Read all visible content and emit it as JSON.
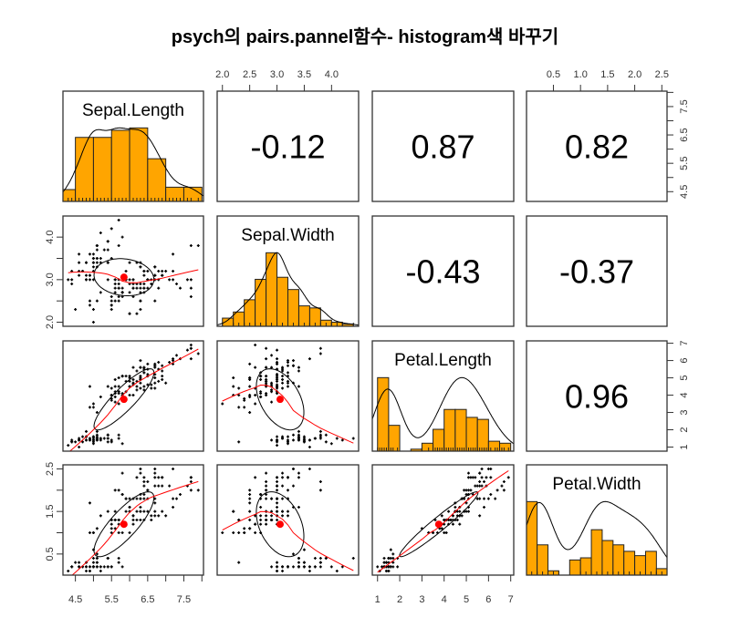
{
  "chart_data": {
    "type": "scatter-matrix",
    "title": "psych의 pairs.pannel함수- histogram색 바꾸기",
    "variables": [
      "Sepal.Length",
      "Sepal.Width",
      "Petal.Length",
      "Petal.Width"
    ],
    "correlations": [
      {
        "row": 0,
        "col": 1,
        "r": "-0.12"
      },
      {
        "row": 0,
        "col": 2,
        "r": "0.87"
      },
      {
        "row": 0,
        "col": 3,
        "r": "0.82"
      },
      {
        "row": 1,
        "col": 2,
        "r": "-0.43"
      },
      {
        "row": 1,
        "col": 3,
        "r": "-0.37"
      },
      {
        "row": 2,
        "col": 3,
        "r": "0.96"
      }
    ],
    "histogram_breaks": [
      [
        4.0,
        4.5,
        5.0,
        5.5,
        6.0,
        6.5,
        7.0,
        7.5,
        8.0
      ],
      [
        2.0,
        2.2,
        2.4,
        2.6,
        2.8,
        3.0,
        3.2,
        3.4,
        3.6,
        3.8,
        4.0,
        4.2,
        4.4
      ],
      [
        1.0,
        1.5,
        2.0,
        2.5,
        3.0,
        3.5,
        4.0,
        4.5,
        5.0,
        5.5,
        6.0,
        6.5,
        7.0
      ],
      [
        0.0,
        0.2,
        0.4,
        0.6,
        0.8,
        1.0,
        1.2,
        1.4,
        1.6,
        1.8,
        2.0,
        2.2,
        2.4,
        2.6
      ]
    ],
    "axes": [
      {
        "side": "top",
        "variable": 1,
        "ticks": [
          2.0,
          2.5,
          3.0,
          3.5,
          4.0
        ],
        "labels": [
          "2.0",
          "2.5",
          "3.0",
          "3.5",
          "4.0"
        ]
      },
      {
        "side": "top",
        "variable": 3,
        "ticks": [
          0.5,
          1.0,
          1.5,
          2.0,
          2.5
        ],
        "labels": [
          "0.5",
          "1.0",
          "1.5",
          "2.0",
          "2.5"
        ]
      },
      {
        "side": "right",
        "variable": 0,
        "ticks": [
          4.5,
          5.0,
          5.5,
          6.0,
          6.5,
          7.0,
          7.5,
          8.0
        ],
        "labels": [
          "4.5",
          "",
          "5.5",
          "",
          "6.5",
          "",
          "7.5",
          ""
        ]
      },
      {
        "side": "right",
        "variable": 2,
        "ticks": [
          1,
          2,
          3,
          4,
          5,
          6,
          7
        ],
        "labels": [
          "1",
          "2",
          "3",
          "4",
          "5",
          "6",
          "7"
        ]
      },
      {
        "side": "left",
        "variable": 1,
        "ticks": [
          2.0,
          2.5,
          3.0,
          3.5,
          4.0
        ],
        "labels": [
          "2.0",
          "",
          "3.0",
          "",
          "4.0"
        ]
      },
      {
        "side": "left",
        "variable": 3,
        "ticks": [
          0.5,
          1.0,
          1.5,
          2.0,
          2.5
        ],
        "labels": [
          "0.5",
          "",
          "1.5",
          "",
          "2.5"
        ]
      },
      {
        "side": "bottom",
        "variable": 0,
        "ticks": [
          4.5,
          5.0,
          5.5,
          6.0,
          6.5,
          7.0,
          7.5,
          8.0
        ],
        "labels": [
          "4.5",
          "",
          "5.5",
          "",
          "6.5",
          "",
          "7.5",
          ""
        ]
      },
      {
        "side": "bottom",
        "variable": 2,
        "ticks": [
          1,
          2,
          3,
          4,
          5,
          6,
          7
        ],
        "labels": [
          "1",
          "2",
          "3",
          "4",
          "5",
          "6",
          "7"
        ]
      }
    ],
    "colors": {
      "histogram_fill": "#FFA500",
      "smooth_line": "#FF0000",
      "mean_point": "#FF0000",
      "points": "#000000",
      "ellipse": "#000000",
      "density": "#000000"
    },
    "data": [
      [
        5.1,
        3.5,
        1.4,
        0.2
      ],
      [
        4.9,
        3.0,
        1.4,
        0.2
      ],
      [
        4.7,
        3.2,
        1.3,
        0.2
      ],
      [
        4.6,
        3.1,
        1.5,
        0.2
      ],
      [
        5.0,
        3.6,
        1.4,
        0.2
      ],
      [
        5.4,
        3.9,
        1.7,
        0.4
      ],
      [
        4.6,
        3.4,
        1.4,
        0.3
      ],
      [
        5.0,
        3.4,
        1.5,
        0.2
      ],
      [
        4.4,
        2.9,
        1.4,
        0.2
      ],
      [
        4.9,
        3.1,
        1.5,
        0.1
      ],
      [
        5.4,
        3.7,
        1.5,
        0.2
      ],
      [
        4.8,
        3.4,
        1.6,
        0.2
      ],
      [
        4.8,
        3.0,
        1.4,
        0.1
      ],
      [
        4.3,
        3.0,
        1.1,
        0.1
      ],
      [
        5.8,
        4.0,
        1.2,
        0.2
      ],
      [
        5.7,
        4.4,
        1.5,
        0.4
      ],
      [
        5.4,
        3.9,
        1.3,
        0.4
      ],
      [
        5.1,
        3.5,
        1.4,
        0.3
      ],
      [
        5.7,
        3.8,
        1.7,
        0.3
      ],
      [
        5.1,
        3.8,
        1.5,
        0.3
      ],
      [
        5.4,
        3.4,
        1.7,
        0.2
      ],
      [
        5.1,
        3.7,
        1.5,
        0.4
      ],
      [
        4.6,
        3.6,
        1.0,
        0.2
      ],
      [
        5.1,
        3.3,
        1.7,
        0.5
      ],
      [
        4.8,
        3.4,
        1.9,
        0.2
      ],
      [
        5.0,
        3.0,
        1.6,
        0.2
      ],
      [
        5.0,
        3.4,
        1.6,
        0.4
      ],
      [
        5.2,
        3.5,
        1.5,
        0.2
      ],
      [
        5.2,
        3.4,
        1.4,
        0.2
      ],
      [
        4.7,
        3.2,
        1.6,
        0.2
      ],
      [
        4.8,
        3.1,
        1.6,
        0.2
      ],
      [
        5.4,
        3.4,
        1.5,
        0.4
      ],
      [
        5.2,
        4.1,
        1.5,
        0.1
      ],
      [
        5.5,
        4.2,
        1.4,
        0.2
      ],
      [
        4.9,
        3.1,
        1.5,
        0.2
      ],
      [
        5.0,
        3.2,
        1.2,
        0.2
      ],
      [
        5.5,
        3.5,
        1.3,
        0.2
      ],
      [
        4.9,
        3.6,
        1.4,
        0.1
      ],
      [
        4.4,
        3.0,
        1.3,
        0.2
      ],
      [
        5.1,
        3.4,
        1.5,
        0.2
      ],
      [
        5.0,
        3.5,
        1.3,
        0.3
      ],
      [
        4.5,
        2.3,
        1.3,
        0.3
      ],
      [
        4.4,
        3.2,
        1.3,
        0.2
      ],
      [
        5.0,
        3.5,
        1.6,
        0.6
      ],
      [
        5.1,
        3.8,
        1.9,
        0.4
      ],
      [
        4.8,
        3.0,
        1.4,
        0.3
      ],
      [
        5.1,
        3.8,
        1.6,
        0.2
      ],
      [
        4.6,
        3.2,
        1.4,
        0.2
      ],
      [
        5.3,
        3.7,
        1.5,
        0.2
      ],
      [
        5.0,
        3.3,
        1.4,
        0.2
      ],
      [
        7.0,
        3.2,
        4.7,
        1.4
      ],
      [
        6.4,
        3.2,
        4.5,
        1.5
      ],
      [
        6.9,
        3.1,
        4.9,
        1.5
      ],
      [
        5.5,
        2.3,
        4.0,
        1.3
      ],
      [
        6.5,
        2.8,
        4.6,
        1.5
      ],
      [
        5.7,
        2.8,
        4.5,
        1.3
      ],
      [
        6.3,
        3.3,
        4.7,
        1.6
      ],
      [
        4.9,
        2.4,
        3.3,
        1.0
      ],
      [
        6.6,
        2.9,
        4.6,
        1.3
      ],
      [
        5.2,
        2.7,
        3.9,
        1.4
      ],
      [
        5.0,
        2.0,
        3.5,
        1.0
      ],
      [
        5.9,
        3.0,
        4.2,
        1.5
      ],
      [
        6.0,
        2.2,
        4.0,
        1.0
      ],
      [
        6.1,
        2.9,
        4.7,
        1.4
      ],
      [
        5.6,
        2.9,
        3.6,
        1.3
      ],
      [
        6.7,
        3.1,
        4.4,
        1.4
      ],
      [
        5.6,
        3.0,
        4.5,
        1.5
      ],
      [
        5.8,
        2.7,
        4.1,
        1.0
      ],
      [
        6.2,
        2.2,
        4.5,
        1.5
      ],
      [
        5.6,
        2.5,
        3.9,
        1.1
      ],
      [
        5.9,
        3.2,
        4.8,
        1.8
      ],
      [
        6.1,
        2.8,
        4.0,
        1.3
      ],
      [
        6.3,
        2.5,
        4.9,
        1.5
      ],
      [
        6.1,
        2.8,
        4.7,
        1.2
      ],
      [
        6.4,
        2.9,
        4.3,
        1.3
      ],
      [
        6.6,
        3.0,
        4.4,
        1.4
      ],
      [
        6.8,
        2.8,
        4.8,
        1.4
      ],
      [
        6.7,
        3.0,
        5.0,
        1.7
      ],
      [
        6.0,
        2.9,
        4.5,
        1.5
      ],
      [
        5.7,
        2.6,
        3.5,
        1.0
      ],
      [
        5.5,
        2.4,
        3.8,
        1.1
      ],
      [
        5.5,
        2.4,
        3.7,
        1.0
      ],
      [
        5.8,
        2.7,
        3.9,
        1.2
      ],
      [
        6.0,
        2.7,
        5.1,
        1.6
      ],
      [
        5.4,
        3.0,
        4.5,
        1.5
      ],
      [
        6.0,
        3.4,
        4.5,
        1.6
      ],
      [
        6.7,
        3.1,
        4.7,
        1.5
      ],
      [
        6.3,
        2.3,
        4.4,
        1.3
      ],
      [
        5.6,
        3.0,
        4.1,
        1.3
      ],
      [
        5.5,
        2.5,
        4.0,
        1.3
      ],
      [
        5.5,
        2.6,
        4.4,
        1.2
      ],
      [
        6.1,
        3.0,
        4.6,
        1.4
      ],
      [
        5.8,
        2.6,
        4.0,
        1.2
      ],
      [
        5.0,
        2.3,
        3.3,
        1.0
      ],
      [
        5.6,
        2.7,
        4.2,
        1.3
      ],
      [
        5.7,
        3.0,
        4.2,
        1.2
      ],
      [
        5.7,
        2.9,
        4.2,
        1.3
      ],
      [
        6.2,
        2.9,
        4.3,
        1.3
      ],
      [
        5.1,
        2.5,
        3.0,
        1.1
      ],
      [
        5.7,
        2.8,
        4.1,
        1.3
      ],
      [
        6.3,
        3.3,
        6.0,
        2.5
      ],
      [
        5.8,
        2.7,
        5.1,
        1.9
      ],
      [
        7.1,
        3.0,
        5.9,
        2.1
      ],
      [
        6.3,
        2.9,
        5.6,
        1.8
      ],
      [
        6.5,
        3.0,
        5.8,
        2.2
      ],
      [
        7.6,
        3.0,
        6.6,
        2.1
      ],
      [
        4.9,
        2.5,
        4.5,
        1.7
      ],
      [
        7.3,
        2.9,
        6.3,
        1.8
      ],
      [
        6.7,
        2.5,
        5.8,
        1.8
      ],
      [
        7.2,
        3.6,
        6.1,
        2.5
      ],
      [
        6.5,
        3.2,
        5.1,
        2.0
      ],
      [
        6.4,
        2.7,
        5.3,
        1.9
      ],
      [
        6.8,
        3.0,
        5.5,
        2.1
      ],
      [
        5.7,
        2.5,
        5.0,
        2.0
      ],
      [
        5.8,
        2.8,
        5.1,
        2.4
      ],
      [
        6.4,
        3.2,
        5.3,
        2.3
      ],
      [
        6.5,
        3.0,
        5.5,
        1.8
      ],
      [
        7.7,
        3.8,
        6.7,
        2.2
      ],
      [
        7.7,
        2.6,
        6.9,
        2.3
      ],
      [
        6.0,
        2.2,
        5.0,
        1.5
      ],
      [
        6.9,
        3.2,
        5.7,
        2.3
      ],
      [
        5.6,
        2.8,
        4.9,
        2.0
      ],
      [
        7.7,
        2.8,
        6.7,
        2.0
      ],
      [
        6.3,
        2.7,
        4.9,
        1.8
      ],
      [
        6.7,
        3.3,
        5.7,
        2.1
      ],
      [
        7.2,
        3.2,
        6.0,
        1.8
      ],
      [
        6.2,
        2.8,
        4.8,
        1.8
      ],
      [
        6.1,
        3.0,
        4.9,
        1.8
      ],
      [
        6.4,
        2.8,
        5.6,
        2.1
      ],
      [
        7.2,
        3.0,
        5.8,
        1.6
      ],
      [
        7.4,
        2.8,
        6.1,
        1.9
      ],
      [
        7.9,
        3.8,
        6.4,
        2.0
      ],
      [
        6.4,
        2.8,
        5.6,
        2.2
      ],
      [
        6.3,
        2.8,
        5.1,
        1.5
      ],
      [
        6.1,
        2.6,
        5.6,
        1.4
      ],
      [
        7.7,
        3.0,
        6.1,
        2.3
      ],
      [
        6.3,
        3.4,
        5.6,
        2.4
      ],
      [
        6.4,
        3.1,
        5.5,
        1.8
      ],
      [
        6.0,
        3.0,
        4.8,
        1.8
      ],
      [
        6.9,
        3.1,
        5.4,
        2.1
      ],
      [
        6.7,
        3.1,
        5.6,
        2.4
      ],
      [
        6.9,
        3.1,
        5.1,
        2.3
      ],
      [
        5.8,
        2.7,
        5.1,
        1.9
      ],
      [
        6.8,
        3.2,
        5.9,
        2.3
      ],
      [
        6.7,
        3.3,
        5.7,
        2.5
      ],
      [
        6.7,
        3.0,
        5.2,
        2.3
      ],
      [
        6.3,
        2.5,
        5.0,
        1.9
      ],
      [
        6.5,
        3.0,
        5.2,
        2.0
      ],
      [
        6.2,
        3.4,
        5.4,
        2.3
      ],
      [
        5.9,
        3.0,
        5.1,
        1.8
      ]
    ]
  }
}
